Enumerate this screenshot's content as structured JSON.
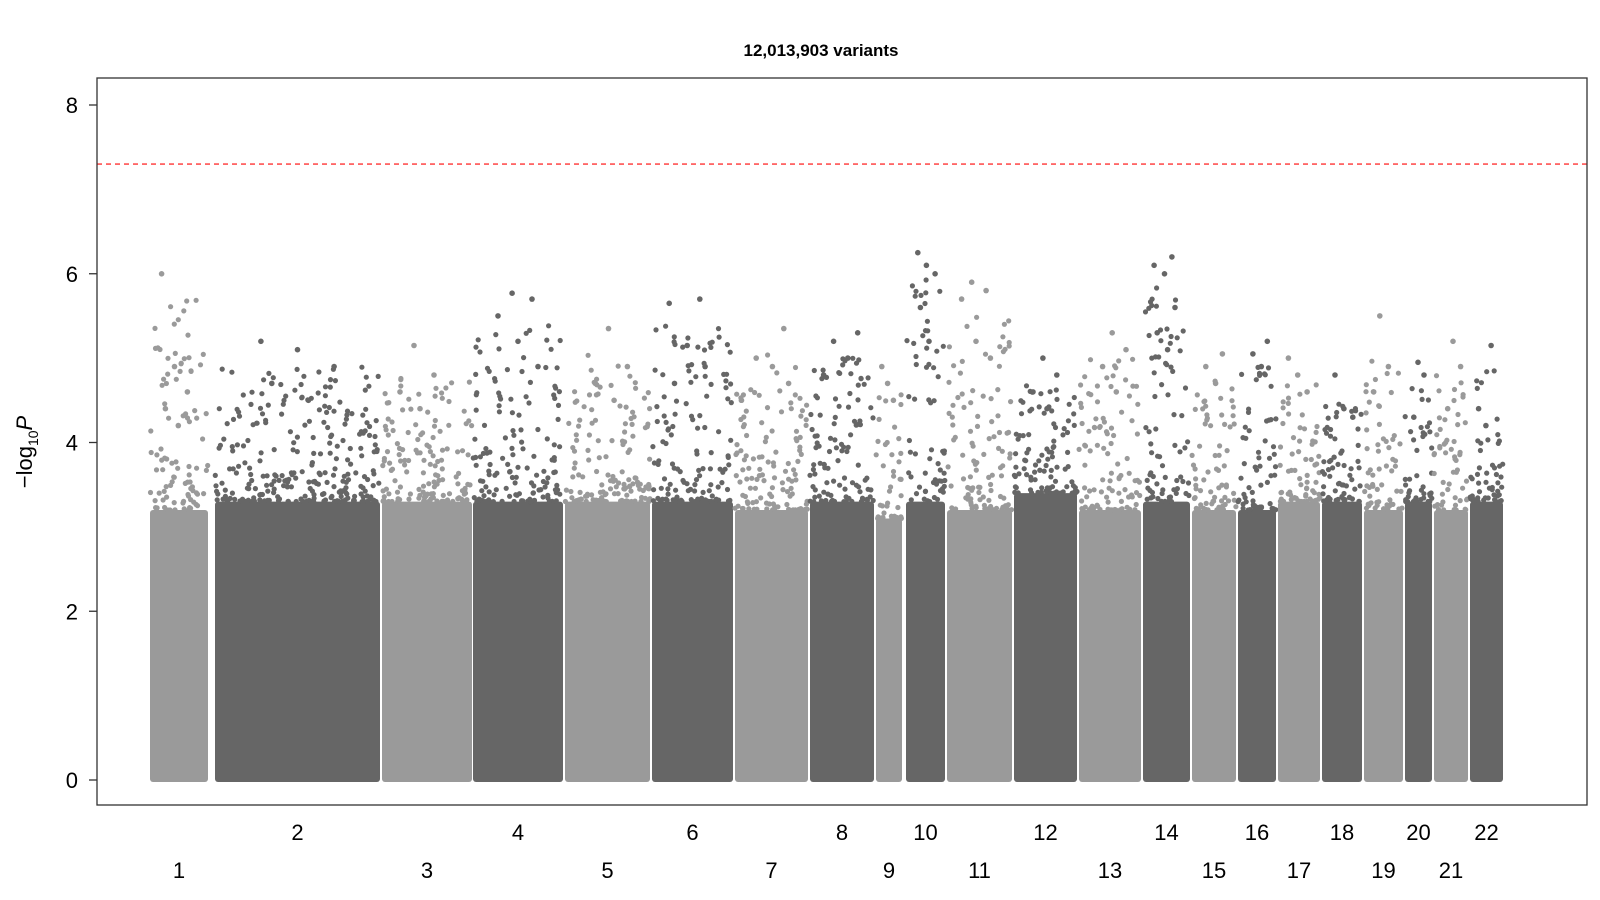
{
  "chart_data": {
    "type": "scatter",
    "subtype": "manhattan",
    "title": "12,013,903 variants",
    "xlabel": "",
    "ylabel": {
      "prefix": "−log",
      "subscript": "10",
      "italic": "P"
    },
    "ylim": [
      0,
      8.5
    ],
    "yticks": [
      "0",
      "2",
      "4",
      "6",
      "8"
    ],
    "grid": false,
    "legend": "none",
    "significance_line": {
      "value": 7.3,
      "color": "#ff3333",
      "style": "dashed"
    },
    "colors": {
      "light": "#9a9a9a",
      "dark": "#666666"
    },
    "chromosomes": [
      {
        "label": "1",
        "body_top": 3.2,
        "peak": 6.0,
        "tops": [
          6.0,
          4.9,
          4.6,
          4.4,
          4.2
        ]
      },
      {
        "label": "2",
        "body_top": 3.3,
        "peak": 5.2,
        "tops": [
          5.2,
          5.1,
          4.9,
          4.7,
          4.5
        ]
      },
      {
        "label": "3",
        "body_top": 3.3,
        "peak": 5.15,
        "tops": [
          5.15,
          4.8,
          4.6,
          4.4
        ]
      },
      {
        "label": "4",
        "body_top": 3.3,
        "peak": 5.77,
        "tops": [
          5.77,
          5.7,
          5.5,
          5.2,
          4.9
        ]
      },
      {
        "label": "5",
        "body_top": 3.3,
        "peak": 5.35,
        "tops": [
          5.35,
          4.9,
          4.7,
          4.5
        ]
      },
      {
        "label": "6",
        "body_top": 3.3,
        "peak": 5.7,
        "tops": [
          5.7,
          5.65,
          5.15,
          4.9,
          4.7
        ]
      },
      {
        "label": "7",
        "body_top": 3.2,
        "peak": 5.35,
        "tops": [
          5.35,
          5.0,
          4.9,
          4.7
        ]
      },
      {
        "label": "8",
        "body_top": 3.3,
        "peak": 5.3,
        "tops": [
          5.3,
          5.2,
          5.0,
          4.8
        ]
      },
      {
        "label": "9",
        "body_top": 3.1,
        "peak": 4.9,
        "tops": [
          4.9,
          4.7,
          4.5
        ]
      },
      {
        "label": "10",
        "body_top": 3.3,
        "peak": 6.25,
        "tops": [
          6.25,
          6.1,
          6.0,
          5.6,
          5.2
        ]
      },
      {
        "label": "11",
        "body_top": 3.2,
        "peak": 5.9,
        "tops": [
          5.9,
          5.8,
          5.7,
          5.2,
          5.0
        ]
      },
      {
        "label": "12",
        "body_top": 3.4,
        "peak": 5.0,
        "tops": [
          5.0,
          4.8,
          4.6,
          4.4
        ]
      },
      {
        "label": "13",
        "body_top": 3.2,
        "peak": 5.3,
        "tops": [
          5.3,
          5.1,
          4.9,
          4.6
        ]
      },
      {
        "label": "14",
        "body_top": 3.3,
        "peak": 6.2,
        "tops": [
          6.2,
          6.1,
          6.0,
          5.6,
          5.3,
          5.1
        ]
      },
      {
        "label": "15",
        "body_top": 3.2,
        "peak": 5.05,
        "tops": [
          5.05,
          4.9,
          4.7
        ]
      },
      {
        "label": "16",
        "body_top": 3.2,
        "peak": 5.2,
        "tops": [
          5.2,
          5.05,
          4.9
        ]
      },
      {
        "label": "17",
        "body_top": 3.3,
        "peak": 5.0,
        "tops": [
          5.0,
          4.8,
          4.6
        ]
      },
      {
        "label": "18",
        "body_top": 3.3,
        "peak": 4.8,
        "tops": [
          4.8,
          4.4,
          4.3
        ]
      },
      {
        "label": "19",
        "body_top": 3.2,
        "peak": 5.5,
        "tops": [
          5.5,
          4.9,
          4.6
        ]
      },
      {
        "label": "20",
        "body_top": 3.3,
        "peak": 4.95,
        "tops": [
          4.95,
          4.8,
          4.3
        ]
      },
      {
        "label": "21",
        "body_top": 3.2,
        "peak": 5.2,
        "tops": [
          5.2,
          4.9,
          4.4
        ]
      },
      {
        "label": "22",
        "body_top": 3.3,
        "peak": 5.15,
        "tops": [
          5.15,
          4.4,
          4.2
        ]
      }
    ]
  }
}
